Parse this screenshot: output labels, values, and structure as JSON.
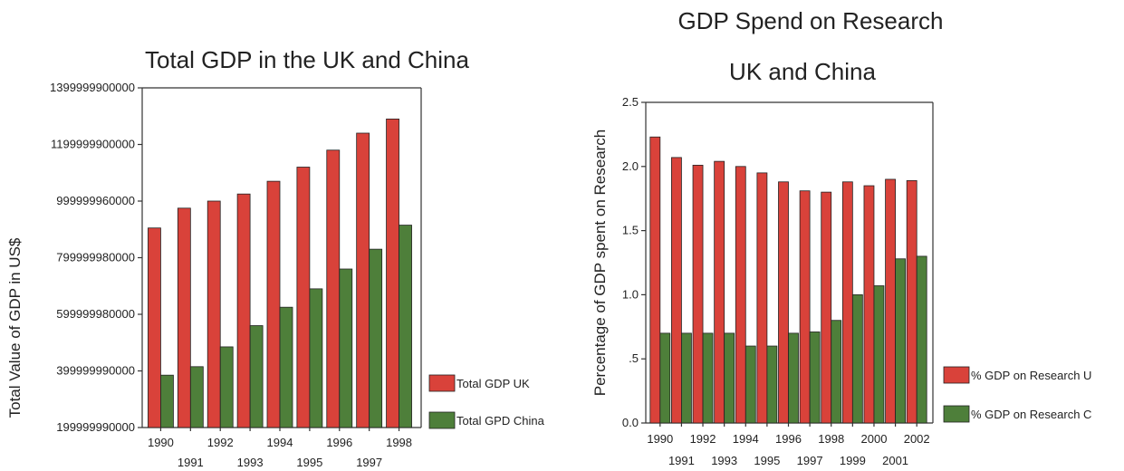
{
  "chart_data": [
    {
      "type": "bar",
      "title": "Total GDP in the UK and China",
      "ylabel": "Total Value of GDP in US$",
      "xlabel": "",
      "categories": [
        "1990",
        "1991",
        "1992",
        "1993",
        "1994",
        "1995",
        "1996",
        "1997",
        "1998"
      ],
      "y_ticks": [
        "199999990000",
        "399999990000",
        "599999980000",
        "799999980000",
        "999999960000",
        "1199999900000",
        "1399999900000"
      ],
      "ylim": [
        199999990000,
        1399999900000
      ],
      "series": [
        {
          "name": "Total GDP UK",
          "color": "#d9423a",
          "values": [
            905000000000,
            975000000000,
            1000000000000,
            1025000000000,
            1070000000000,
            1120000000000,
            1180000000000,
            1240000000000,
            1290000000000
          ]
        },
        {
          "name": "Total GPD China",
          "color": "#4e7f3a",
          "values": [
            385000000000,
            415000000000,
            485000000000,
            560000000000,
            625000000000,
            690000000000,
            760000000000,
            830000000000,
            915000000000
          ]
        }
      ],
      "legend_position": "right-bottom"
    },
    {
      "type": "bar",
      "title": "GDP Spend on Research",
      "subtitle": "UK and China",
      "ylabel": "Percentage of GDP spent on Research",
      "xlabel": "",
      "categories": [
        "1990",
        "1991",
        "1992",
        "1993",
        "1994",
        "1995",
        "1996",
        "1997",
        "1998",
        "1999",
        "2000",
        "2001",
        "2002"
      ],
      "y_ticks": [
        "0.0",
        ".5",
        "1.0",
        "1.5",
        "2.0",
        "2.5"
      ],
      "ylim": [
        0,
        2.5
      ],
      "series": [
        {
          "name": "% GDP on Research U",
          "color": "#d9423a",
          "values": [
            2.23,
            2.07,
            2.01,
            2.04,
            2.0,
            1.95,
            1.88,
            1.81,
            1.8,
            1.88,
            1.85,
            1.9,
            1.89
          ]
        },
        {
          "name": "% GDP on Research C",
          "color": "#4e7f3a",
          "values": [
            0.7,
            0.7,
            0.7,
            0.7,
            0.6,
            0.6,
            0.7,
            0.71,
            0.8,
            1.0,
            1.07,
            1.28,
            1.3
          ]
        }
      ],
      "legend_position": "right-bottom"
    }
  ]
}
